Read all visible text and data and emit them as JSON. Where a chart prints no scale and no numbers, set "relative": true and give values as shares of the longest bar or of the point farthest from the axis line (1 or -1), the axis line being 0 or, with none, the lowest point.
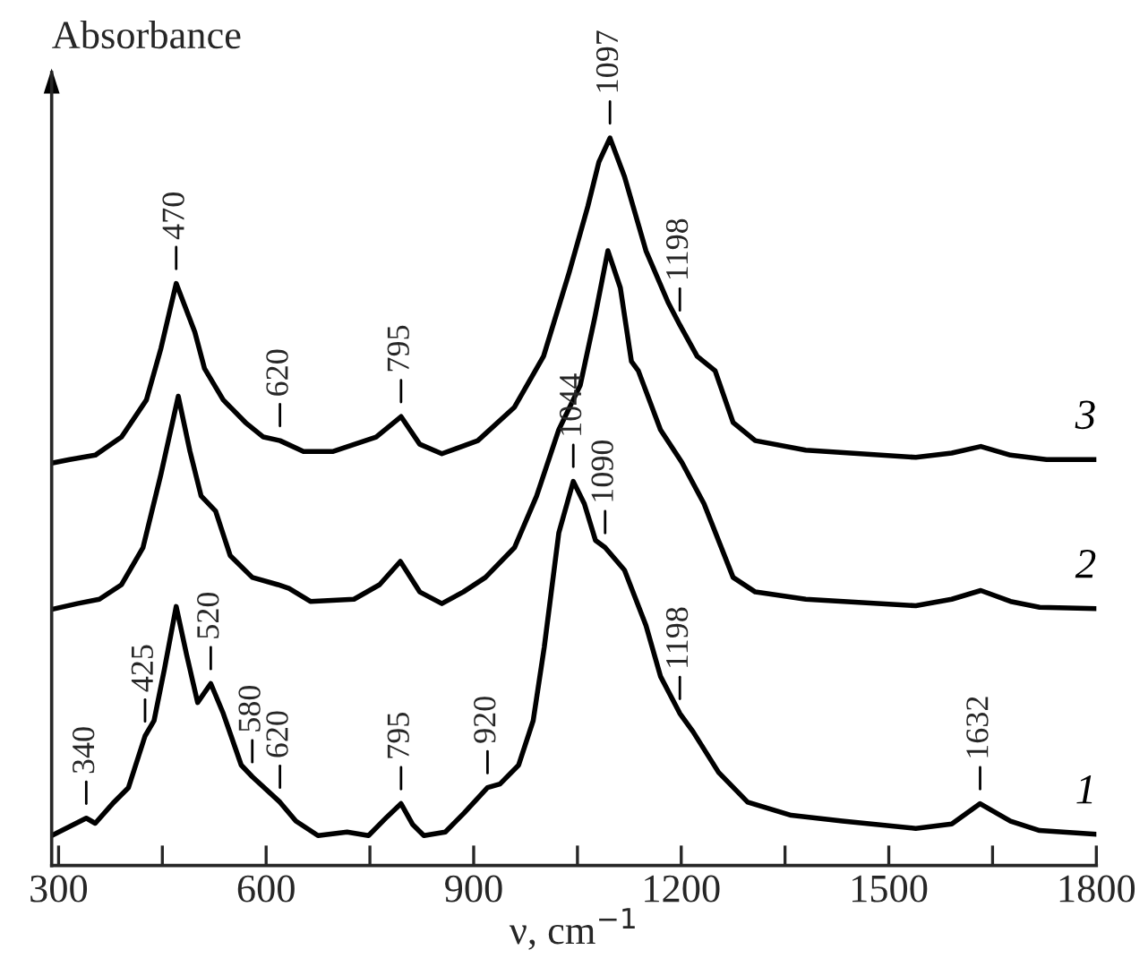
{
  "chart_data": {
    "type": "line",
    "relative": true,
    "xlabel": "ν, cm$^{−1}$",
    "ylabel": "Absorbance",
    "xlim": [
      290,
      1800
    ],
    "xticks": [
      300,
      {
        "value": 450,
        "label": null
      },
      600,
      {
        "value": 750,
        "label": null
      },
      900,
      {
        "value": 1050,
        "label": null
      },
      1200,
      {
        "value": 1350,
        "label": null
      },
      1500,
      {
        "value": 1650,
        "label": null
      },
      1800
    ],
    "grid": false,
    "legend": "right",
    "marker": "none",
    "line_style": "solid",
    "series": [
      {
        "name": "1",
        "color": "#000000",
        "x": [
          290,
          340,
          353,
          380,
          401,
          425,
          438,
          453,
          470,
          485,
          501,
          520,
          538,
          564,
          580,
          620,
          643,
          675,
          717,
          748,
          775,
          795,
          812,
          828,
          859,
          886,
          920,
          938,
          965,
          986,
          1002,
          1023,
          1044,
          1060,
          1076,
          1090,
          1118,
          1149,
          1170,
          1198,
          1217,
          1254,
          1296,
          1359,
          1433,
          1539,
          1591,
          1632,
          1676,
          1718,
          1800
        ],
        "values": [
          0.041,
          0.065,
          0.058,
          0.087,
          0.107,
          0.178,
          0.199,
          0.27,
          0.356,
          0.29,
          0.224,
          0.25,
          0.209,
          0.138,
          0.122,
          0.087,
          0.061,
          0.041,
          0.046,
          0.041,
          0.067,
          0.085,
          0.056,
          0.041,
          0.046,
          0.072,
          0.107,
          0.112,
          0.138,
          0.199,
          0.3,
          0.457,
          0.528,
          0.497,
          0.447,
          0.437,
          0.406,
          0.33,
          0.26,
          0.209,
          0.184,
          0.128,
          0.087,
          0.069,
          0.061,
          0.051,
          0.057,
          0.085,
          0.061,
          0.048,
          0.043
        ]
      },
      {
        "name": "2",
        "color": "#000000",
        "x": [
          290,
          327,
          359,
          391,
          422,
          448,
          473,
          490,
          506,
          527,
          548,
          580,
          617,
          633,
          664,
          727,
          764,
          794,
          822,
          854,
          885,
          917,
          959,
          991,
          1023,
          1054,
          1075,
          1094,
          1112,
          1128,
          1138,
          1170,
          1201,
          1233,
          1275,
          1307,
          1380,
          1539,
          1591,
          1633,
          1676,
          1718,
          1800
        ],
        "values": [
          0.352,
          0.36,
          0.366,
          0.386,
          0.437,
          0.538,
          0.645,
          0.569,
          0.508,
          0.487,
          0.426,
          0.396,
          0.386,
          0.381,
          0.363,
          0.366,
          0.386,
          0.418,
          0.376,
          0.36,
          0.376,
          0.396,
          0.437,
          0.508,
          0.599,
          0.66,
          0.753,
          0.845,
          0.794,
          0.693,
          0.68,
          0.599,
          0.554,
          0.497,
          0.396,
          0.376,
          0.366,
          0.357,
          0.366,
          0.378,
          0.363,
          0.355,
          0.353
        ]
      },
      {
        "name": "3",
        "color": "#000000",
        "x": [
          290,
          316,
          353,
          391,
          427,
          448,
          470,
          497,
          511,
          538,
          570,
          596,
          620,
          654,
          696,
          759,
          795,
          822,
          854,
          906,
          959,
          1001,
          1038,
          1065,
          1081,
          1097,
          1118,
          1149,
          1181,
          1198,
          1223,
          1249,
          1275,
          1307,
          1380,
          1539,
          1591,
          1633,
          1676,
          1728,
          1800
        ],
        "values": [
          0.553,
          0.558,
          0.564,
          0.589,
          0.64,
          0.711,
          0.8,
          0.733,
          0.683,
          0.64,
          0.609,
          0.589,
          0.584,
          0.569,
          0.569,
          0.589,
          0.617,
          0.579,
          0.566,
          0.584,
          0.63,
          0.7,
          0.815,
          0.906,
          0.967,
          1.0,
          0.947,
          0.845,
          0.774,
          0.743,
          0.7,
          0.68,
          0.609,
          0.584,
          0.571,
          0.561,
          0.567,
          0.576,
          0.564,
          0.558,
          0.558
        ]
      }
    ],
    "annotations": [
      {
        "text": "470",
        "x": 470,
        "y": 0.8
      },
      {
        "text": "620",
        "x": 620,
        "y": 0.584
      },
      {
        "text": "795",
        "x": 795,
        "y": 0.617
      },
      {
        "text": "1097",
        "x": 1097,
        "y": 1.0
      },
      {
        "text": "1198",
        "x": 1198,
        "y": 0.743
      },
      {
        "text": "1044",
        "x": 1044,
        "y": 0.528
      },
      {
        "text": "1090",
        "x": 1090,
        "y": 0.437
      },
      {
        "text": "340",
        "x": 340,
        "y": 0.065
      },
      {
        "text": "425",
        "x": 425,
        "y": 0.178
      },
      {
        "text": "520",
        "x": 520,
        "y": 0.25
      },
      {
        "text": "580",
        "x": 580,
        "y": 0.122
      },
      {
        "text": "620",
        "x": 620,
        "y": 0.087
      },
      {
        "text": "795",
        "x": 795,
        "y": 0.085
      },
      {
        "text": "920",
        "x": 920,
        "y": 0.107
      },
      {
        "text": "1198",
        "x": 1198,
        "y": 0.209
      },
      {
        "text": "1632",
        "x": 1632,
        "y": 0.085
      }
    ]
  }
}
